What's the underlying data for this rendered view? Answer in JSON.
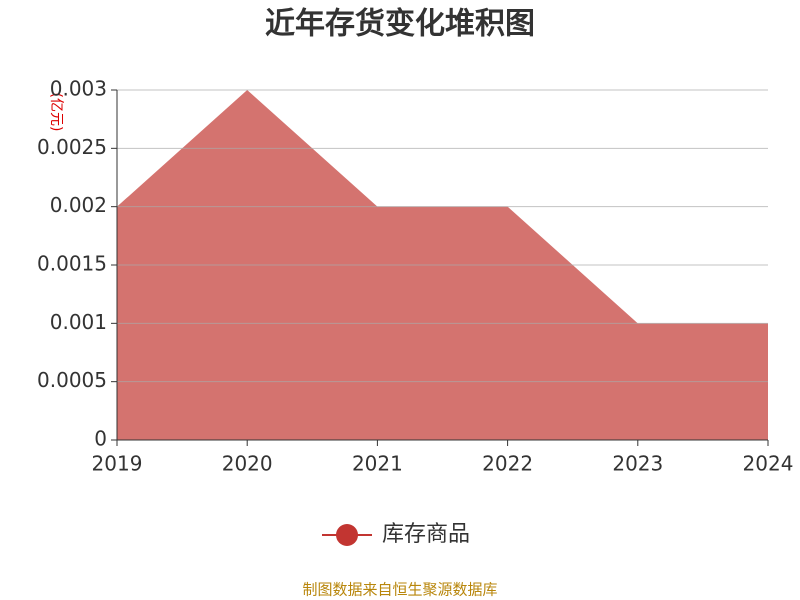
{
  "chart_data": {
    "type": "area",
    "title": "近年存货变化堆积图",
    "y_axis_label": "(亿元)",
    "categories": [
      "2019",
      "2020",
      "2021",
      "2022",
      "2023",
      "2024"
    ],
    "series": [
      {
        "name": "库存商品",
        "color": "#c23531",
        "fill": "#d4736f",
        "values": [
          0.002,
          0.003,
          0.002,
          0.002,
          0.001,
          0.001
        ]
      }
    ],
    "ylim": [
      0,
      0.003
    ],
    "yticks": [
      0,
      0.0005,
      0.001,
      0.0015,
      0.002,
      0.0025,
      0.003
    ],
    "grid": true,
    "legend": "bottom",
    "source": "制图数据来自恒生聚源数据库"
  }
}
